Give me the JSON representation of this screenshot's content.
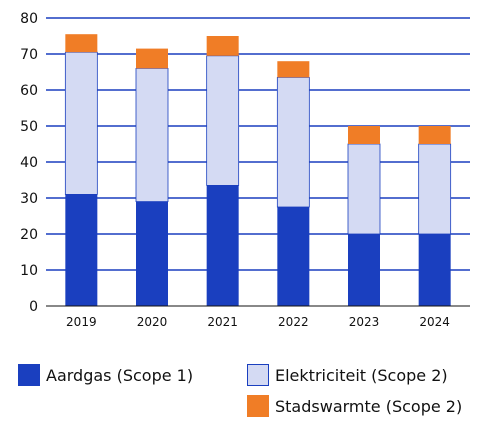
{
  "chart_data": {
    "type": "bar",
    "stacked": true,
    "categories": [
      "2019",
      "2020",
      "2021",
      "2022",
      "2023",
      "2024"
    ],
    "series": [
      {
        "name": "Aardgas (Scope 1)",
        "color": "#1a3fbf",
        "values": [
          31,
          29,
          33.5,
          27.5,
          20,
          20
        ]
      },
      {
        "name": "Elektriciteit (Scope 2)",
        "color": "#d4daf3",
        "values": [
          39.5,
          37,
          36,
          36,
          25,
          25
        ]
      },
      {
        "name": "Stadswarmte (Scope 2)",
        "color": "#f07d26",
        "values": [
          5,
          5.5,
          5.5,
          4.5,
          5,
          5
        ]
      }
    ],
    "ylim": [
      0,
      80
    ],
    "yticks": [
      0,
      10,
      20,
      30,
      40,
      50,
      60,
      70,
      80
    ],
    "grid": true,
    "gridColor": "#1a3fbf",
    "legend_position": "bottom"
  }
}
